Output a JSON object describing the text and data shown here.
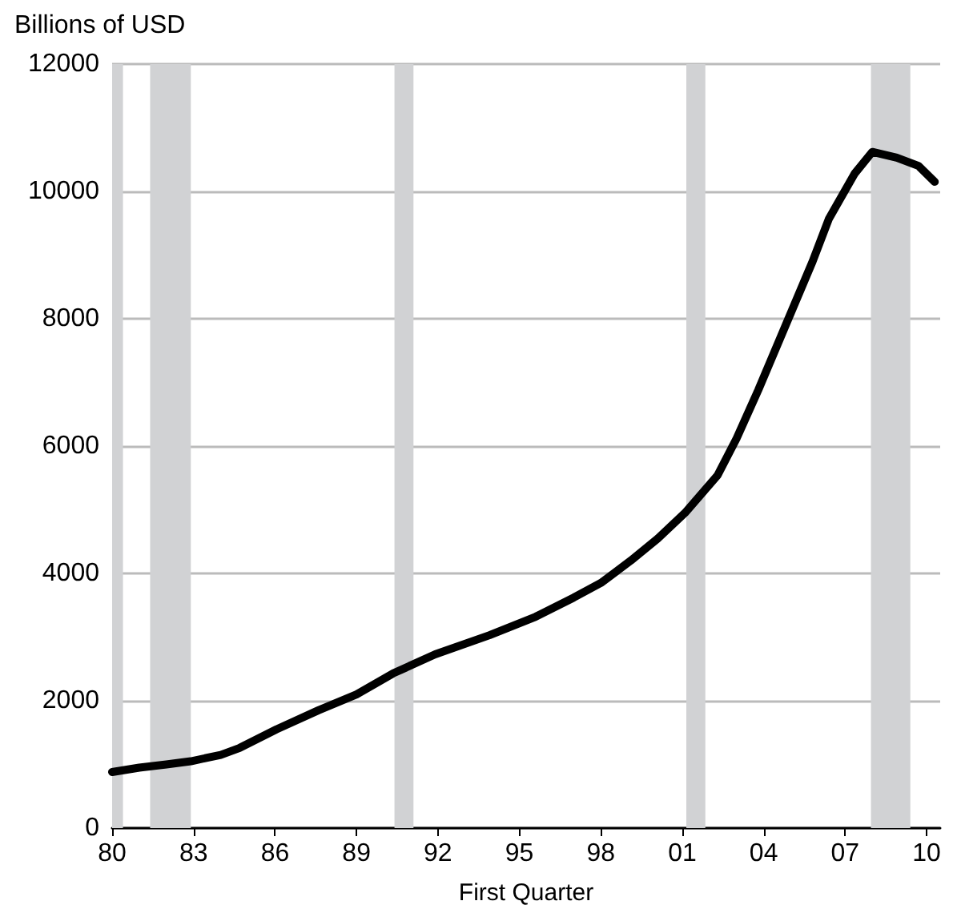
{
  "chart_data": {
    "type": "line",
    "ylabel": "Billions of USD",
    "xlabel": "First Quarter",
    "x": [
      1980.0,
      1981.0,
      1982.0,
      1982.9,
      1984.0,
      1984.7,
      1986.05,
      1987.6,
      1989.0,
      1990.35,
      1991.9,
      1993.9,
      1995.6,
      1997.0,
      1998.0,
      1999.1,
      2000.1,
      2001.1,
      2002.3,
      2003.0,
      2003.8,
      2004.8,
      2005.8,
      2006.4,
      2007.35,
      2008.0,
      2008.9,
      2009.7,
      2010.3
    ],
    "series": [
      {
        "color": "#000000",
        "values": [
          880,
          950,
          1000,
          1050,
          1150,
          1260,
          1550,
          1850,
          2100,
          2430,
          2730,
          3030,
          3320,
          3620,
          3850,
          4200,
          4550,
          4950,
          5540,
          6120,
          6880,
          7890,
          8900,
          9570,
          10280,
          10620,
          10530,
          10400,
          10150
        ]
      }
    ],
    "xlim": [
      1980,
      2010.5
    ],
    "xticks": [
      {
        "value": 1980,
        "label": "80"
      },
      {
        "value": 1983,
        "label": "83"
      },
      {
        "value": 1986,
        "label": "86"
      },
      {
        "value": 1989,
        "label": "89"
      },
      {
        "value": 1992,
        "label": "92"
      },
      {
        "value": 1995,
        "label": "95"
      },
      {
        "value": 1998,
        "label": "98"
      },
      {
        "value": 2001,
        "label": "01"
      },
      {
        "value": 2004,
        "label": "04"
      },
      {
        "value": 2007,
        "label": "07"
      },
      {
        "value": 2010,
        "label": "10"
      }
    ],
    "ylim": [
      0,
      12000
    ],
    "yticks": [
      0,
      2000,
      4000,
      6000,
      8000,
      10000,
      12000
    ],
    "grid": "y",
    "marker": "none",
    "line_style": "solid",
    "bands": [
      {
        "axis": "x",
        "from": 1980.0,
        "to": 1980.4,
        "color": "#d1d2d4"
      },
      {
        "axis": "x",
        "from": 1981.4,
        "to": 1982.9,
        "color": "#d1d2d4"
      },
      {
        "axis": "x",
        "from": 1990.4,
        "to": 1991.1,
        "color": "#d1d2d4"
      },
      {
        "axis": "x",
        "from": 2001.15,
        "to": 2001.85,
        "color": "#d1d2d4"
      },
      {
        "axis": "x",
        "from": 2007.95,
        "to": 2009.4,
        "color": "#d1d2d4"
      }
    ]
  }
}
